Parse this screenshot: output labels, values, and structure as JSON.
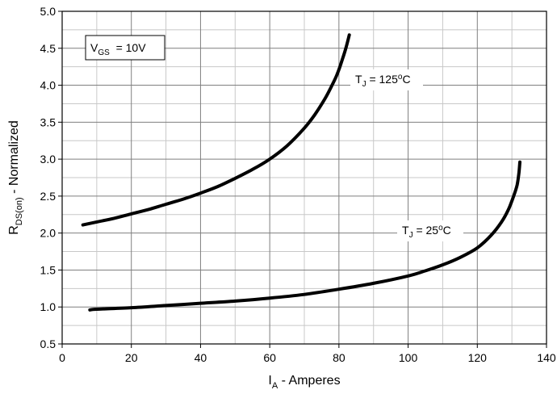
{
  "chart_data": {
    "type": "line",
    "title": "",
    "xlabel": {
      "main": "I",
      "sub": "A",
      "rest": " - Amperes"
    },
    "ylabel": {
      "main": "R",
      "sub": "DS(on)",
      "rest": " - Normalized"
    },
    "xlim": [
      0,
      140
    ],
    "ylim": [
      0.5,
      5.0
    ],
    "x_ticks": [
      0,
      20,
      40,
      60,
      80,
      100,
      120,
      140
    ],
    "x_tick_labels": [
      "0",
      "20",
      "40",
      "60",
      "80",
      "100",
      "120",
      "140"
    ],
    "y_ticks": [
      0.5,
      1.0,
      1.5,
      2.0,
      2.5,
      3.0,
      3.5,
      4.0,
      4.5,
      5.0
    ],
    "y_tick_labels": [
      "0.5",
      "1.0",
      "1.5",
      "2.0",
      "2.5",
      "3.0",
      "3.5",
      "4.0",
      "4.5",
      "5.0"
    ],
    "grid": true,
    "conditions_box": {
      "main": "V",
      "sub": "GS",
      "rest": "  = 10V"
    },
    "series": [
      {
        "label": {
          "main": "T",
          "sub": "J",
          "rest": " = 125",
          "sup": "o",
          "unit": "C"
        },
        "points": [
          [
            6,
            2.11
          ],
          [
            10,
            2.15
          ],
          [
            15,
            2.2
          ],
          [
            20,
            2.26
          ],
          [
            25,
            2.32
          ],
          [
            30,
            2.39
          ],
          [
            35,
            2.46
          ],
          [
            40,
            2.54
          ],
          [
            45,
            2.63
          ],
          [
            50,
            2.74
          ],
          [
            55,
            2.86
          ],
          [
            60,
            3.0
          ],
          [
            65,
            3.18
          ],
          [
            70,
            3.42
          ],
          [
            73,
            3.6
          ],
          [
            76,
            3.82
          ],
          [
            78,
            4.0
          ],
          [
            79.5,
            4.15
          ],
          [
            81,
            4.35
          ],
          [
            82,
            4.5
          ],
          [
            83,
            4.68
          ]
        ]
      },
      {
        "label": {
          "main": "T",
          "sub": "J",
          "rest": " = 25",
          "sup": "o",
          "unit": "C"
        },
        "points": [
          [
            8,
            0.96
          ],
          [
            10,
            0.97
          ],
          [
            20,
            0.99
          ],
          [
            30,
            1.02
          ],
          [
            40,
            1.05
          ],
          [
            50,
            1.08
          ],
          [
            60,
            1.12
          ],
          [
            70,
            1.17
          ],
          [
            80,
            1.24
          ],
          [
            90,
            1.32
          ],
          [
            100,
            1.42
          ],
          [
            105,
            1.49
          ],
          [
            110,
            1.57
          ],
          [
            115,
            1.67
          ],
          [
            120,
            1.8
          ],
          [
            124,
            1.97
          ],
          [
            127,
            2.15
          ],
          [
            129,
            2.32
          ],
          [
            130.5,
            2.5
          ],
          [
            131.5,
            2.65
          ],
          [
            132,
            2.8
          ],
          [
            132.3,
            2.96
          ]
        ]
      }
    ]
  }
}
